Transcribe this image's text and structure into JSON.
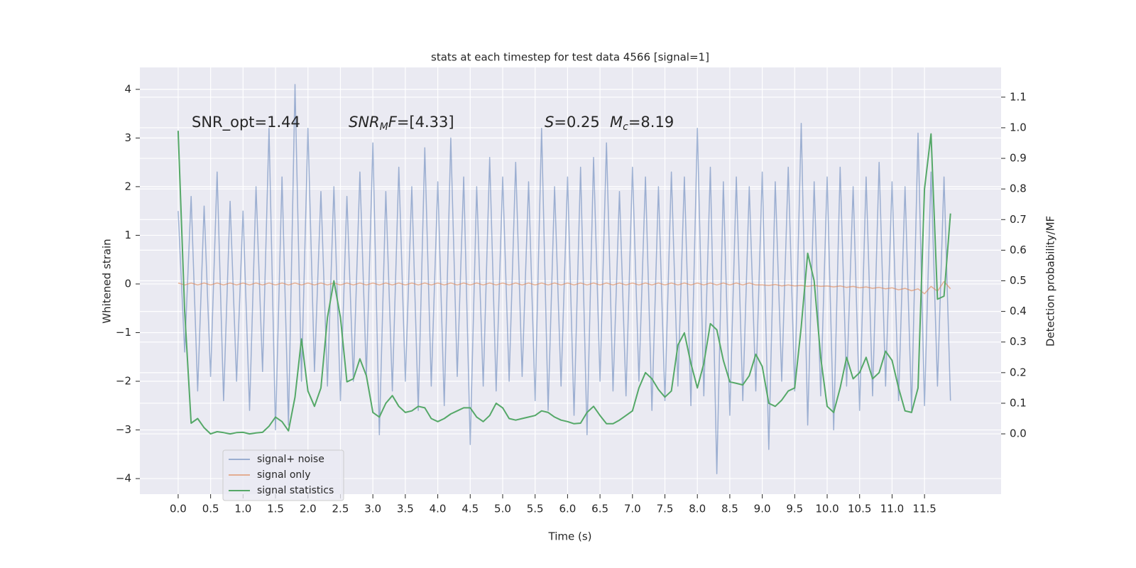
{
  "chart_data": {
    "type": "line",
    "title": "stats at each timestep for test data 4566 [signal=1]",
    "xlabel": "Time (s)",
    "ylabel": "Whitened strain",
    "y2label": "Detection probability/MF",
    "annotations": [
      [
        {
          "text": "SNR_opt=1.44",
          "style": "normal"
        }
      ],
      [
        {
          "text": "SNR",
          "style": "italic"
        },
        {
          "text": "M",
          "style": "sub"
        },
        {
          "text": "F",
          "style": "italic"
        },
        {
          "text": "=[4.33]",
          "style": "normal"
        }
      ],
      [
        {
          "text": "S",
          "style": "italic"
        },
        {
          "text": "=0.25",
          "style": "normal"
        }
      ],
      [
        {
          "text": "M",
          "style": "italic"
        },
        {
          "text": "c",
          "style": "sub"
        },
        {
          "text": "=8.19",
          "style": "normal"
        }
      ]
    ],
    "x": [
      0,
      0.1,
      0.2,
      0.3,
      0.4,
      0.5,
      0.6,
      0.7,
      0.8,
      0.9,
      1,
      1.1,
      1.2,
      1.3,
      1.4,
      1.5,
      1.6,
      1.7,
      1.8,
      1.9,
      2,
      2.1,
      2.2,
      2.3,
      2.4,
      2.5,
      2.6,
      2.7,
      2.8,
      2.9,
      3,
      3.1,
      3.2,
      3.3,
      3.4,
      3.5,
      3.6,
      3.7,
      3.8,
      3.9,
      4,
      4.1,
      4.2,
      4.3,
      4.4,
      4.5,
      4.6,
      4.7,
      4.8,
      4.9,
      5,
      5.1,
      5.2,
      5.3,
      5.4,
      5.5,
      5.6,
      5.7,
      5.8,
      5.9,
      6,
      6.1,
      6.2,
      6.3,
      6.4,
      6.5,
      6.6,
      6.7,
      6.8,
      6.9,
      7,
      7.1,
      7.2,
      7.3,
      7.4,
      7.5,
      7.6,
      7.7,
      7.8,
      7.9,
      8,
      8.1,
      8.2,
      8.3,
      8.4,
      8.5,
      8.6,
      8.7,
      8.8,
      8.9,
      9,
      9.1,
      9.2,
      9.3,
      9.4,
      9.5,
      9.6,
      9.7,
      9.8,
      9.9,
      10,
      10.1,
      10.2,
      10.3,
      10.4,
      10.5,
      10.6,
      10.7,
      10.8,
      10.9,
      11,
      11.1,
      11.2,
      11.3,
      11.4,
      11.5,
      11.6,
      11.7,
      11.8,
      11.9
    ],
    "series": [
      {
        "name": "signal+ noise",
        "color": "#4c72b0",
        "alpha": 0.5,
        "values": [
          1.5,
          -1.4,
          1.8,
          -2.2,
          1.6,
          -1.9,
          2.3,
          -2.4,
          1.7,
          -2.0,
          1.5,
          -2.6,
          2.0,
          -1.8,
          3.2,
          -3.0,
          2.2,
          -2.9,
          4.1,
          -2.0,
          3.2,
          -1.8,
          1.9,
          -2.1,
          2.0,
          -2.4,
          1.8,
          -2.0,
          2.3,
          -1.9,
          2.9,
          -3.1,
          1.9,
          -2.2,
          2.4,
          -2.0,
          2.0,
          -2.6,
          2.8,
          -2.1,
          2.1,
          -2.5,
          3.0,
          -1.9,
          2.2,
          -3.3,
          2.0,
          -2.1,
          2.6,
          -2.2,
          2.2,
          -2.0,
          2.5,
          -1.9,
          2.1,
          -2.4,
          3.2,
          -2.6,
          2.0,
          -2.1,
          2.2,
          -2.7,
          2.4,
          -3.1,
          2.6,
          -2.0,
          2.9,
          -2.2,
          1.9,
          -2.3,
          2.4,
          -2.0,
          2.2,
          -2.6,
          2.0,
          -2.4,
          2.3,
          -2.1,
          2.2,
          -2.5,
          3.2,
          -2.3,
          2.4,
          -3.9,
          2.1,
          -2.7,
          2.2,
          -2.4,
          2.0,
          -2.2,
          2.3,
          -3.4,
          2.1,
          -2.0,
          2.4,
          -2.2,
          3.3,
          -2.9,
          2.1,
          -2.3,
          2.2,
          -3.0,
          2.4,
          -2.1,
          2.0,
          -2.6,
          2.2,
          -2.3,
          2.5,
          -2.1,
          2.1,
          -2.4,
          2.0,
          -2.6,
          3.1,
          -2.5,
          2.3,
          -2.1,
          2.2,
          -2.4
        ]
      },
      {
        "name": "signal only",
        "color": "#dd8452",
        "alpha": 0.6,
        "values": [
          0.02,
          -0.02,
          0.02,
          -0.02,
          0.02,
          -0.02,
          0.02,
          -0.02,
          0.02,
          -0.02,
          0.02,
          -0.02,
          0.02,
          -0.02,
          0.02,
          -0.02,
          0.02,
          -0.02,
          0.02,
          -0.02,
          0.02,
          -0.02,
          0.02,
          -0.02,
          0.02,
          -0.02,
          0.02,
          -0.02,
          0.02,
          -0.02,
          0.02,
          -0.02,
          0.02,
          -0.02,
          0.02,
          -0.02,
          0.02,
          -0.02,
          0.02,
          -0.02,
          0.02,
          -0.02,
          0.02,
          -0.02,
          0.02,
          -0.02,
          0.02,
          -0.02,
          0.02,
          -0.02,
          0.02,
          -0.02,
          0.02,
          -0.02,
          0.02,
          -0.02,
          0.02,
          -0.02,
          0.02,
          -0.02,
          0.02,
          -0.02,
          0.02,
          -0.02,
          0.02,
          -0.02,
          0.02,
          -0.02,
          0.02,
          -0.02,
          0.02,
          -0.02,
          0.02,
          -0.02,
          0.02,
          -0.02,
          0.02,
          -0.02,
          0.02,
          -0.02,
          0.02,
          -0.02,
          0.02,
          -0.02,
          0.02,
          -0.02,
          0.02,
          -0.02,
          0.02,
          -0.02,
          -0.02,
          -0.03,
          -0.01,
          -0.04,
          -0.02,
          -0.04,
          -0.03,
          -0.05,
          -0.03,
          -0.05,
          -0.04,
          -0.06,
          -0.04,
          -0.07,
          -0.05,
          -0.08,
          -0.06,
          -0.09,
          -0.07,
          -0.1,
          -0.08,
          -0.12,
          -0.09,
          -0.14,
          -0.1,
          -0.2,
          -0.05,
          -0.15,
          0.05,
          -0.1
        ]
      },
      {
        "name": "signal statistics",
        "color": "#55a868",
        "alpha": 1,
        "axis": "y2",
        "values": [
          0.99,
          0.4,
          0.035,
          0.05,
          0.02,
          0.0,
          0.007,
          0.004,
          0.0,
          0.004,
          0.005,
          0.0,
          0.003,
          0.005,
          0.025,
          0.055,
          0.04,
          0.01,
          0.12,
          0.31,
          0.14,
          0.09,
          0.15,
          0.38,
          0.5,
          0.38,
          0.17,
          0.18,
          0.245,
          0.19,
          0.07,
          0.055,
          0.1,
          0.125,
          0.09,
          0.07,
          0.075,
          0.09,
          0.085,
          0.05,
          0.04,
          0.05,
          0.065,
          0.075,
          0.085,
          0.085,
          0.055,
          0.04,
          0.06,
          0.1,
          0.085,
          0.05,
          0.045,
          0.05,
          0.055,
          0.06,
          0.075,
          0.07,
          0.055,
          0.045,
          0.04,
          0.033,
          0.035,
          0.07,
          0.09,
          0.06,
          0.033,
          0.033,
          0.045,
          0.06,
          0.075,
          0.15,
          0.2,
          0.18,
          0.145,
          0.12,
          0.14,
          0.29,
          0.33,
          0.23,
          0.15,
          0.23,
          0.36,
          0.34,
          0.24,
          0.17,
          0.165,
          0.16,
          0.19,
          0.26,
          0.22,
          0.1,
          0.09,
          0.11,
          0.14,
          0.15,
          0.35,
          0.59,
          0.5,
          0.25,
          0.09,
          0.07,
          0.15,
          0.25,
          0.18,
          0.2,
          0.25,
          0.18,
          0.2,
          0.27,
          0.24,
          0.15,
          0.075,
          0.07,
          0.15,
          0.8,
          0.98,
          0.44,
          0.45,
          0.72
        ]
      }
    ],
    "xlim": [
      -0.59,
      12.68
    ],
    "ylim": [
      -4.32,
      4.45
    ],
    "y2lim": [
      -0.197,
      1.197
    ],
    "xticks": [
      {
        "value": 0,
        "label": "0.0"
      },
      0.5,
      {
        "value": 1,
        "label": "1.0"
      },
      1.5,
      {
        "value": 2,
        "label": "2.0"
      },
      2.5,
      {
        "value": 3,
        "label": "3.0"
      },
      3.5,
      {
        "value": 4,
        "label": "4.0"
      },
      4.5,
      {
        "value": 5,
        "label": "5.0"
      },
      5.5,
      {
        "value": 6,
        "label": "6.0"
      },
      6.5,
      {
        "value": 7,
        "label": "7.0"
      },
      7.5,
      {
        "value": 8,
        "label": "8.0"
      },
      8.5,
      {
        "value": 9,
        "label": "9.0"
      },
      9.5,
      {
        "value": 10,
        "label": "10.0"
      },
      10.5,
      {
        "value": 11,
        "label": "11.0"
      },
      11.5
    ],
    "yticks": [
      {
        "value": -4,
        "label": "−4"
      },
      {
        "value": -3,
        "label": "−3"
      },
      {
        "value": -2,
        "label": "−2"
      },
      {
        "value": -1,
        "label": "−1"
      },
      0,
      1,
      2,
      3,
      4
    ],
    "y2ticks": [
      {
        "value": 0,
        "label": "0.0"
      },
      0.1,
      0.2,
      0.3,
      0.4,
      0.5,
      0.6,
      0.7,
      0.8,
      0.9,
      {
        "value": 1,
        "label": "1.0"
      },
      1.1
    ],
    "grid": true,
    "legend_loc": "lower left"
  }
}
